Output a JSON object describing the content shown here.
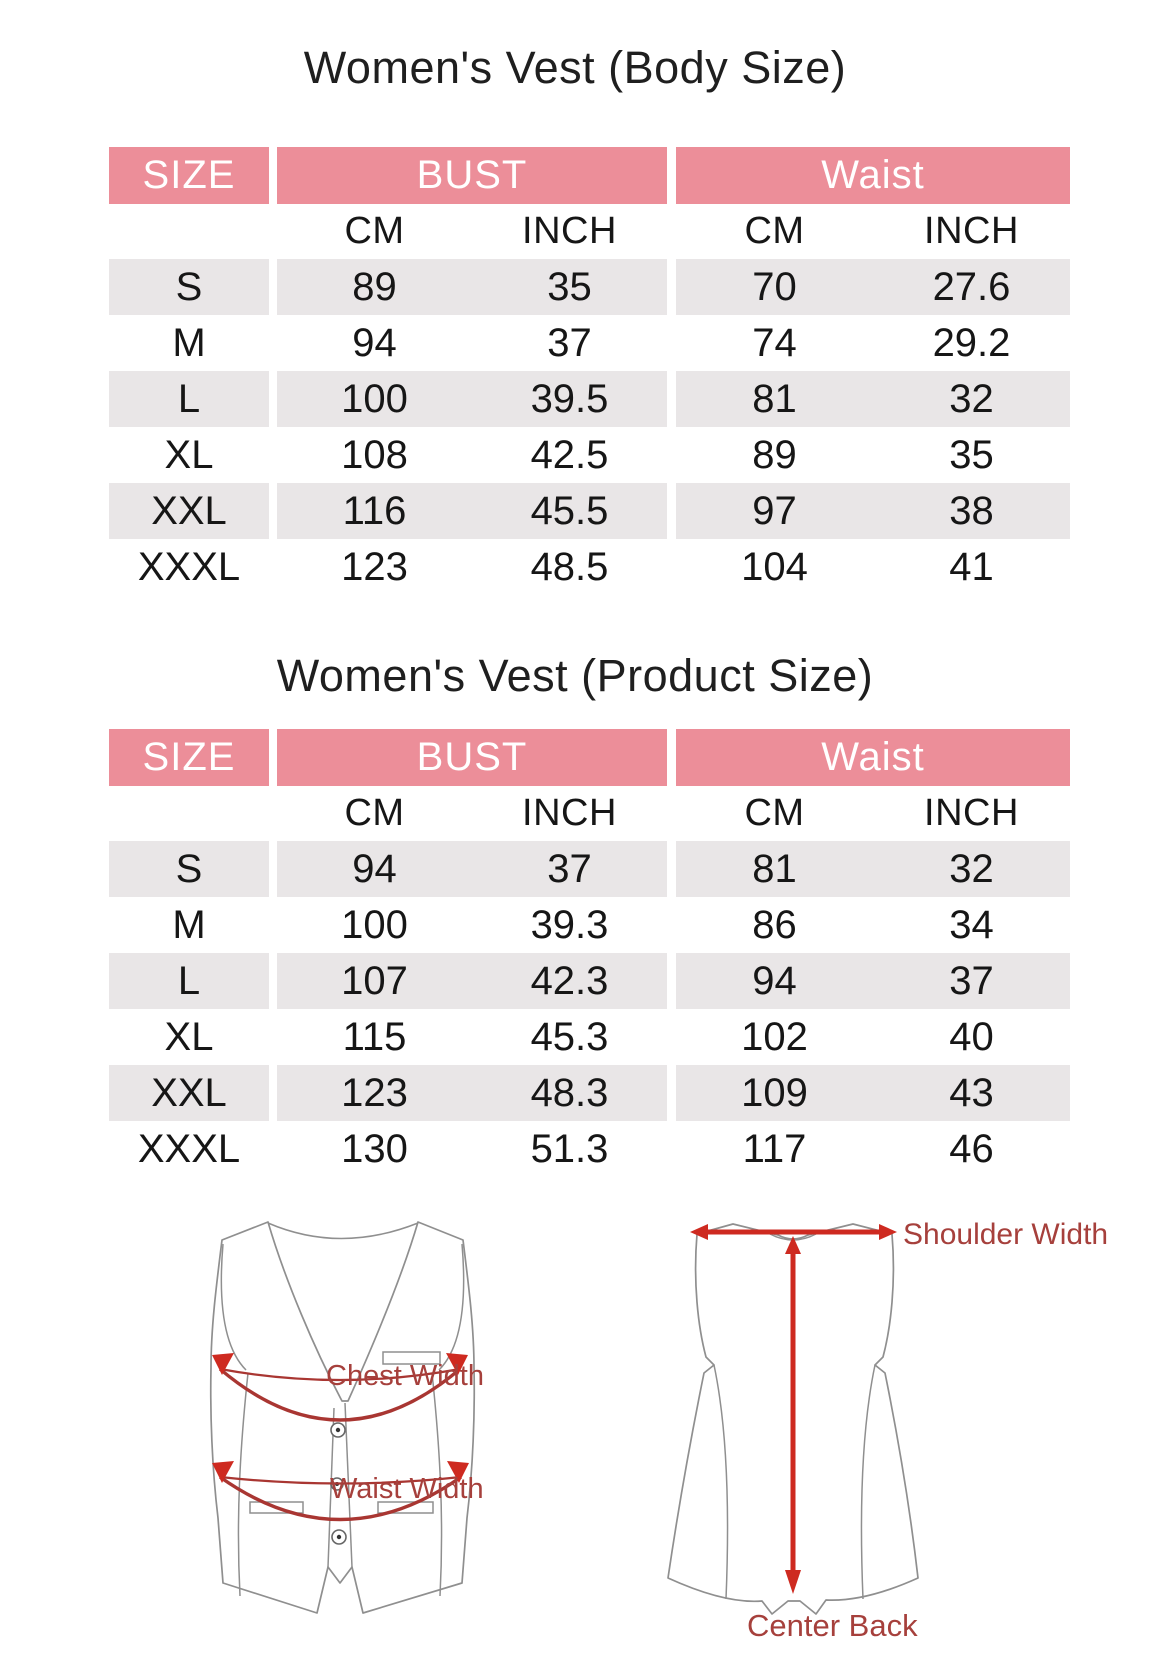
{
  "colors": {
    "header_pink": "#EC8E99",
    "row_gray": "#E9E6E7",
    "arrow_red": "#CE2A20",
    "band_red": "#A93632",
    "label_red": "#A6403C"
  },
  "tables": [
    {
      "title": "Women's Vest (Body Size)",
      "headers": {
        "size": "SIZE",
        "bust": "BUST",
        "waist": "Waist",
        "cm": "CM",
        "inch": "INCH"
      },
      "rows": [
        {
          "size": "S",
          "bust_cm": "89",
          "bust_inch": "35",
          "waist_cm": "70",
          "waist_inch": "27.6"
        },
        {
          "size": "M",
          "bust_cm": "94",
          "bust_inch": "37",
          "waist_cm": "74",
          "waist_inch": "29.2"
        },
        {
          "size": "L",
          "bust_cm": "100",
          "bust_inch": "39.5",
          "waist_cm": "81",
          "waist_inch": "32"
        },
        {
          "size": "XL",
          "bust_cm": "108",
          "bust_inch": "42.5",
          "waist_cm": "89",
          "waist_inch": "35"
        },
        {
          "size": "XXL",
          "bust_cm": "116",
          "bust_inch": "45.5",
          "waist_cm": "97",
          "waist_inch": "38"
        },
        {
          "size": "XXXL",
          "bust_cm": "123",
          "bust_inch": "48.5",
          "waist_cm": "104",
          "waist_inch": "41"
        }
      ]
    },
    {
      "title": "Women's Vest (Product Size)",
      "headers": {
        "size": "SIZE",
        "bust": "BUST",
        "waist": "Waist",
        "cm": "CM",
        "inch": "INCH"
      },
      "rows": [
        {
          "size": "S",
          "bust_cm": "94",
          "bust_inch": "37",
          "waist_cm": "81",
          "waist_inch": "32"
        },
        {
          "size": "M",
          "bust_cm": "100",
          "bust_inch": "39.3",
          "waist_cm": "86",
          "waist_inch": "34"
        },
        {
          "size": "L",
          "bust_cm": "107",
          "bust_inch": "42.3",
          "waist_cm": "94",
          "waist_inch": "37"
        },
        {
          "size": "XL",
          "bust_cm": "115",
          "bust_inch": "45.3",
          "waist_cm": "102",
          "waist_inch": "40"
        },
        {
          "size": "XXL",
          "bust_cm": "123",
          "bust_inch": "48.3",
          "waist_cm": "109",
          "waist_inch": "43"
        },
        {
          "size": "XXXL",
          "bust_cm": "130",
          "bust_inch": "51.3",
          "waist_cm": "117",
          "waist_inch": "46"
        }
      ]
    }
  ],
  "diagrams": {
    "front": {
      "chest_label": "Chest Width",
      "waist_label": "Waist Width"
    },
    "back": {
      "shoulder_label": "Shoulder Width",
      "center_back_label": "Center Back"
    }
  }
}
